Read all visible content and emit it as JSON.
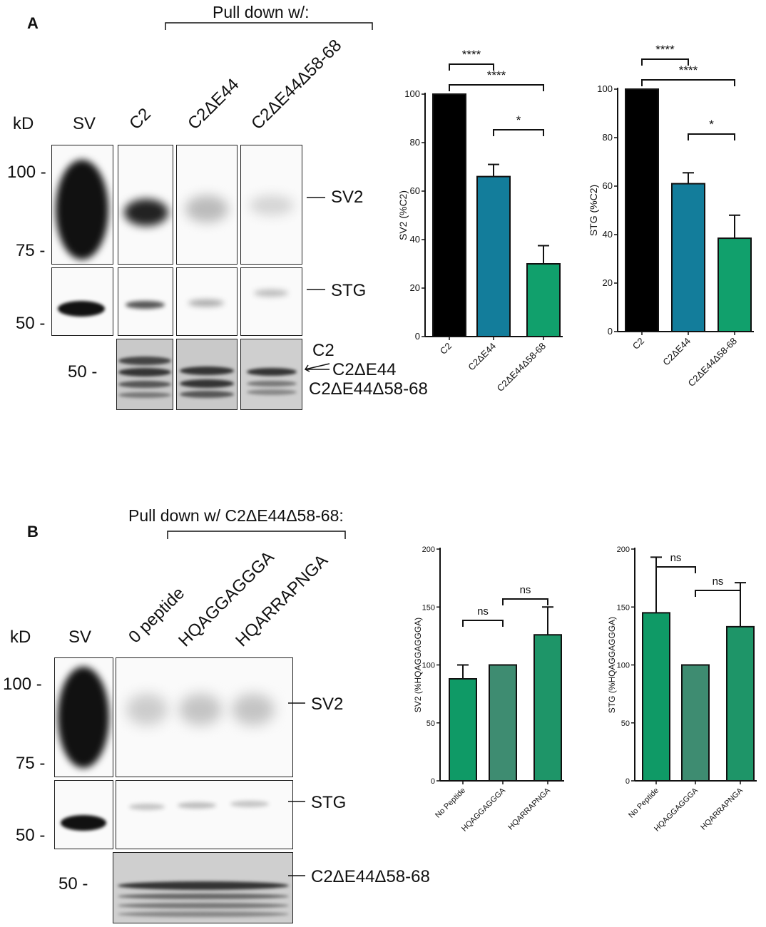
{
  "panelA": {
    "letter": "A",
    "pulldown_title": "Pull down w/:",
    "kd_label": "kD",
    "lanes": [
      "SV",
      "C2",
      "C2ΔE44",
      "C2ΔE44Δ58-68"
    ],
    "markers": [
      "100 -",
      "75 -",
      "50 -",
      "50 -"
    ],
    "bands": {
      "sv2": "SV2",
      "stg": "STG",
      "c2": "C2",
      "c2e44": "C2ΔE44",
      "c2e44d": "C2ΔE44Δ58-68"
    }
  },
  "panelB": {
    "letter": "B",
    "pulldown_title": "Pull down w/ C2ΔE44Δ58-68:",
    "kd_label": "kD",
    "lanes": [
      "SV",
      "0 peptide",
      "HQAGGAGGGA",
      "HQARRAPNGA"
    ],
    "markers": [
      "100 -",
      "75 -",
      "50 -",
      "50 -"
    ],
    "bands": {
      "sv2": "SV2",
      "stg": "STG",
      "c2e44d": "C2ΔE44Δ58-68"
    }
  },
  "chart_data": [
    {
      "type": "bar",
      "ylabel": "SV2 (%C2)",
      "categories": [
        "C2",
        "C2ΔE44",
        "C2ΔE44Δ58-68"
      ],
      "values": [
        100,
        66,
        30
      ],
      "errors": [
        0,
        5,
        7.5
      ],
      "colors": [
        "#000000",
        "#137d9b",
        "#11a06c"
      ],
      "ylim": [
        0,
        100
      ],
      "yticks": [
        0,
        20,
        40,
        60,
        80,
        100
      ],
      "significance": [
        {
          "from": 0,
          "to": 1,
          "label": "****"
        },
        {
          "from": 0,
          "to": 2,
          "label": "****"
        },
        {
          "from": 1,
          "to": 2,
          "label": "*"
        }
      ]
    },
    {
      "type": "bar",
      "ylabel": "STG (%C2)",
      "categories": [
        "C2",
        "C2ΔE44",
        "C2ΔE44Δ58-68"
      ],
      "values": [
        100,
        61,
        38.5
      ],
      "errors": [
        0,
        4.5,
        9.5
      ],
      "colors": [
        "#000000",
        "#137d9b",
        "#11a06c"
      ],
      "ylim": [
        0,
        100
      ],
      "yticks": [
        0,
        20,
        40,
        60,
        80,
        100
      ],
      "significance": [
        {
          "from": 0,
          "to": 1,
          "label": "****"
        },
        {
          "from": 0,
          "to": 2,
          "label": "****"
        },
        {
          "from": 1,
          "to": 2,
          "label": "*"
        }
      ]
    },
    {
      "type": "bar",
      "ylabel": "SV2 (%HQAGGAGGGA)",
      "categories": [
        "No Peptide",
        "HQAGGAGGGA",
        "HQARRAPNGA"
      ],
      "values": [
        88,
        100,
        126
      ],
      "errors": [
        12,
        0,
        24
      ],
      "colors": [
        "#0f9a66",
        "#3e8c71",
        "#1e9568"
      ],
      "ylim": [
        0,
        200
      ],
      "yticks": [
        0,
        50,
        100,
        150,
        200
      ],
      "significance": [
        {
          "from": 0,
          "to": 1,
          "label": "ns"
        },
        {
          "from": 1,
          "to": 2,
          "label": "ns"
        }
      ]
    },
    {
      "type": "bar",
      "ylabel": "STG (%HQAGGAGGGA)",
      "categories": [
        "No Peptide",
        "HQAGGAGGGA",
        "HQARRAPNGA"
      ],
      "values": [
        145,
        100,
        133
      ],
      "errors": [
        48,
        0,
        38
      ],
      "colors": [
        "#0f9a66",
        "#3e8c71",
        "#1e9568"
      ],
      "ylim": [
        0,
        200
      ],
      "yticks": [
        0,
        50,
        100,
        150,
        200
      ],
      "significance": [
        {
          "from": 0,
          "to": 1,
          "label": "ns"
        },
        {
          "from": 1,
          "to": 2,
          "label": "ns"
        }
      ]
    }
  ]
}
